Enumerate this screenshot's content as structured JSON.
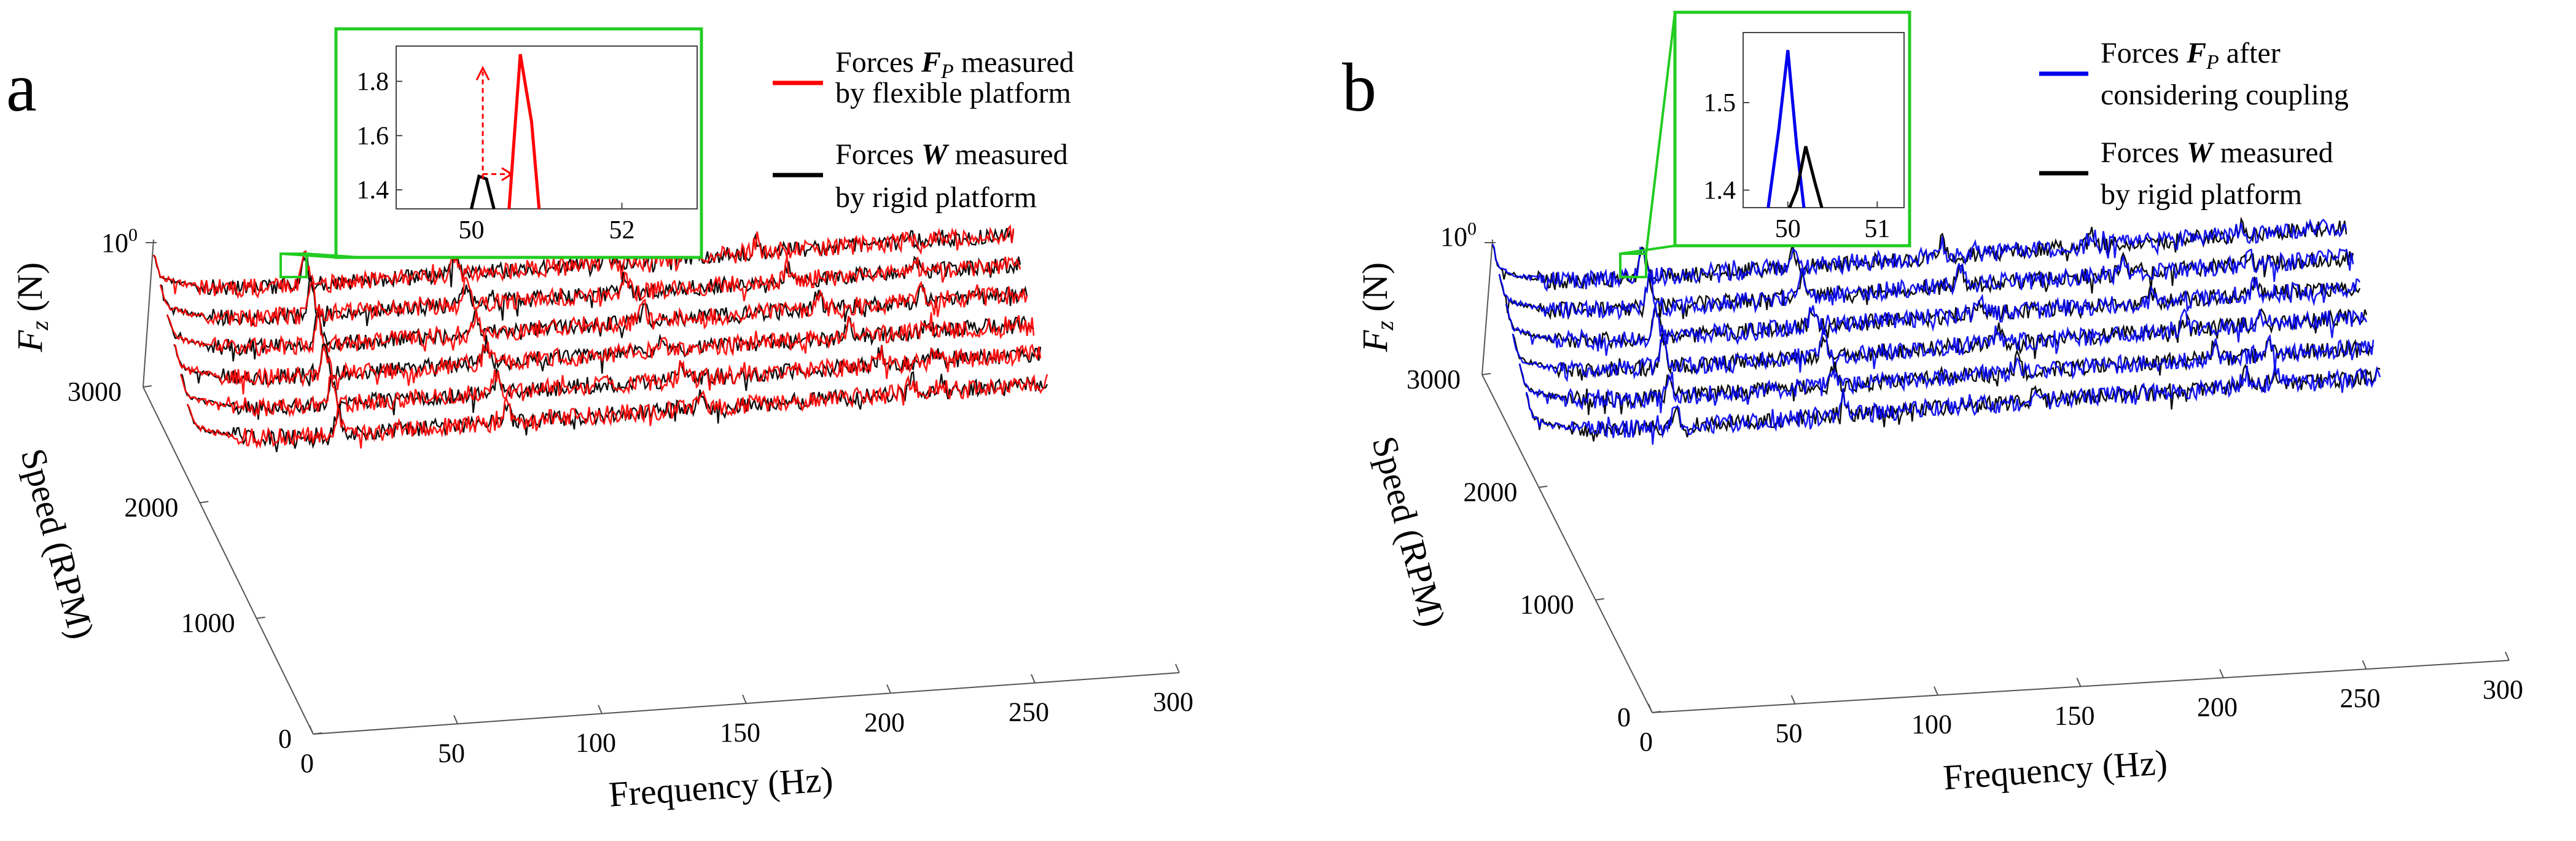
{
  "chart_data": [
    {
      "type": "line",
      "panel_label": "a",
      "zlabel": "F_z (N)",
      "zlabel_main": "F",
      "zlabel_sub": "z",
      "zlabel_unit": " (N)",
      "z_tick_label": "10",
      "z_tick_exp": "0",
      "xlabel": "Frequency (Hz)",
      "ylabel": "Speed (RPM)",
      "x_ticks": [
        0,
        50,
        100,
        150,
        200,
        250,
        300
      ],
      "y_ticks": [
        0,
        1000,
        2000,
        3000
      ],
      "xlim": [
        0,
        300
      ],
      "ylim": [
        0,
        3000
      ],
      "speeds_rpm": [
        3000,
        2500,
        2000,
        1500,
        1000,
        500
      ],
      "legend": [
        {
          "name": "Forces",
          "symbol": "F",
          "sub": "P",
          "line1_tail": "measured",
          "line2": "by flexible platform",
          "color": "#ff0000"
        },
        {
          "name": "Forces",
          "symbol": "W",
          "sub": "",
          "line1_tail": "measured",
          "line2": "by rigid platform",
          "color": "#000000"
        }
      ],
      "inset": {
        "x_ticks": [
          50,
          52
        ],
        "y_ticks": [
          1.4,
          1.6,
          1.8
        ],
        "xlim": [
          49,
          53
        ],
        "ylim": [
          1.33,
          1.93
        ],
        "series": [
          {
            "name": "rigid",
            "color": "#000000",
            "x": [
              50.0,
              50.1,
              50.2,
              50.3
            ],
            "y": [
              1.33,
              1.45,
              1.44,
              1.33
            ]
          },
          {
            "name": "flexible",
            "color": "#ff0000",
            "x": [
              50.5,
              50.65,
              50.8,
              50.9
            ],
            "y": [
              1.33,
              1.9,
              1.65,
              1.33
            ]
          }
        ],
        "arrow_peak_x": 50.2,
        "arrow_peak_y": 1.44,
        "arrow_top_y": 1.85,
        "arrow_target_x": 50.6
      }
    },
    {
      "type": "line",
      "panel_label": "b",
      "zlabel": "F_z (N)",
      "zlabel_main": "F",
      "zlabel_sub": "z",
      "zlabel_unit": " (N)",
      "z_tick_label": "10",
      "z_tick_exp": "0",
      "xlabel": "Frequency (Hz)",
      "ylabel": "Speed (RPM)",
      "x_ticks": [
        0,
        50,
        100,
        150,
        200,
        250,
        300
      ],
      "y_ticks": [
        0,
        1000,
        2000,
        3000
      ],
      "xlim": [
        0,
        300
      ],
      "ylim": [
        0,
        3000
      ],
      "speeds_rpm": [
        3000,
        2500,
        2000,
        1500,
        1000,
        500
      ],
      "legend": [
        {
          "name": "Forces",
          "symbol": "F",
          "sub": "P",
          "line1_tail": "after",
          "line2": "considering coupling",
          "color": "#0000ee"
        },
        {
          "name": "Forces",
          "symbol": "W",
          "sub": "",
          "line1_tail": "measured",
          "line2": "by rigid platform",
          "color": "#000000"
        }
      ],
      "inset": {
        "x_ticks": [
          50,
          51
        ],
        "y_ticks": [
          1.4,
          1.5
        ],
        "xlim": [
          49.5,
          51.3
        ],
        "ylim": [
          1.38,
          1.58
        ],
        "series": [
          {
            "name": "coupled",
            "color": "#0000ee",
            "x": [
              49.78,
              49.9,
              50.0,
              50.1,
              50.18
            ],
            "y": [
              1.38,
              1.47,
              1.56,
              1.45,
              1.38
            ]
          },
          {
            "name": "rigid",
            "color": "#000000",
            "x": [
              50.02,
              50.1,
              50.2,
              50.3,
              50.38
            ],
            "y": [
              1.38,
              1.4,
              1.45,
              1.41,
              1.38
            ]
          }
        ]
      }
    }
  ]
}
